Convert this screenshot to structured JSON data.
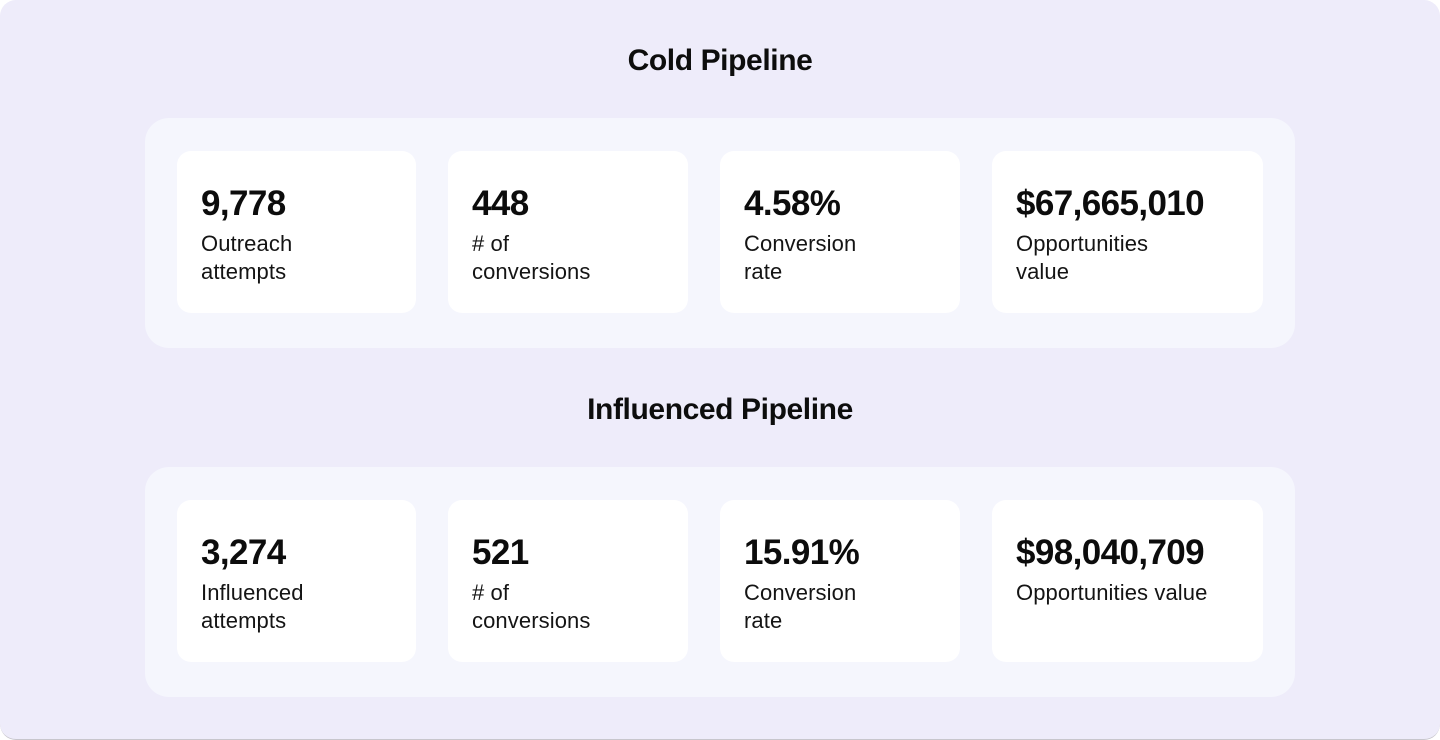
{
  "colors": {
    "canvas_background": "#eeecfa",
    "panel_background": "#f5f6fd",
    "card_background": "#ffffff",
    "text": "#0d0d0d"
  },
  "sections": [
    {
      "title": "Cold Pipeline",
      "metrics": [
        {
          "value": "9,778",
          "label": "Outreach\nattempts"
        },
        {
          "value": "448",
          "label": "# of\nconversions"
        },
        {
          "value": "4.58%",
          "label": "Conversion\nrate"
        },
        {
          "value": "$67,665,010",
          "label": "Opportunities\nvalue"
        }
      ]
    },
    {
      "title": "Influenced Pipeline",
      "metrics": [
        {
          "value": "3,274",
          "label": "Influenced\nattempts"
        },
        {
          "value": "521",
          "label": "# of\nconversions"
        },
        {
          "value": "15.91%",
          "label": "Conversion\nrate"
        },
        {
          "value": "$98,040,709",
          "label": "Opportunities value"
        }
      ]
    }
  ]
}
